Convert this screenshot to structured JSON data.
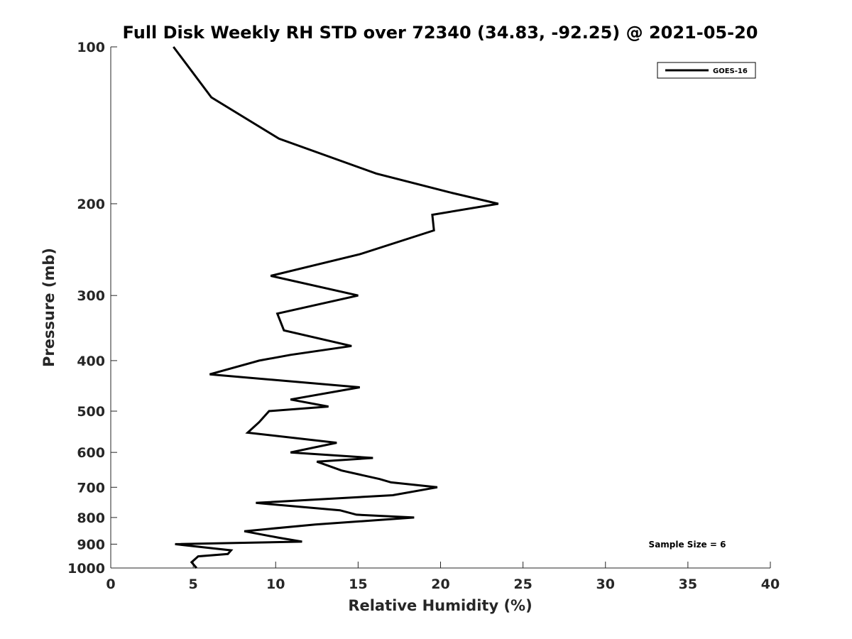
{
  "chart_data": {
    "type": "line",
    "title": "Full Disk Weekly RH STD over 72340 (34.83, -92.25) @ 2021-05-20",
    "xlabel": "Relative Humidity (%)",
    "ylabel": "Pressure (mb)",
    "xlim": [
      0,
      40
    ],
    "ylim": [
      100,
      1000
    ],
    "y_scale": "log",
    "y_reversed": true,
    "grid": false,
    "legend_position": "top-right",
    "x_ticks": [
      "0",
      "5",
      "10",
      "15",
      "20",
      "25",
      "30",
      "35",
      "40"
    ],
    "y_ticks": [
      "100",
      "200",
      "300",
      "400",
      "500",
      "600",
      "700",
      "800",
      "900",
      "1000"
    ],
    "annotation": "Sample Size = 6",
    "series": [
      {
        "name": "GOES-16",
        "color": "#000000",
        "points": [
          [
            3.8,
            100
          ],
          [
            6.1,
            125
          ],
          [
            10.2,
            150
          ],
          [
            16.1,
            175
          ],
          [
            20.5,
            190
          ],
          [
            23.5,
            200
          ],
          [
            19.5,
            210
          ],
          [
            19.6,
            225
          ],
          [
            15.1,
            250
          ],
          [
            9.7,
            275
          ],
          [
            15.0,
            300
          ],
          [
            10.1,
            325
          ],
          [
            10.5,
            350
          ],
          [
            14.6,
            375
          ],
          [
            10.9,
            390
          ],
          [
            9.0,
            400
          ],
          [
            6.0,
            425
          ],
          [
            15.1,
            450
          ],
          [
            10.9,
            475
          ],
          [
            13.2,
            490
          ],
          [
            9.6,
            500
          ],
          [
            9.0,
            525
          ],
          [
            8.3,
            550
          ],
          [
            13.7,
            575
          ],
          [
            10.9,
            600
          ],
          [
            15.9,
            615
          ],
          [
            12.5,
            625
          ],
          [
            14.0,
            650
          ],
          [
            16.3,
            675
          ],
          [
            17.0,
            685
          ],
          [
            19.8,
            700
          ],
          [
            17.1,
            725
          ],
          [
            8.8,
            750
          ],
          [
            13.9,
            775
          ],
          [
            14.9,
            790
          ],
          [
            18.4,
            800
          ],
          [
            12.4,
            825
          ],
          [
            8.1,
            850
          ],
          [
            10.2,
            875
          ],
          [
            11.6,
            890
          ],
          [
            3.9,
            900
          ],
          [
            7.3,
            925
          ],
          [
            7.1,
            940
          ],
          [
            5.3,
            950
          ],
          [
            4.9,
            975
          ],
          [
            5.2,
            1000
          ]
        ]
      }
    ]
  }
}
